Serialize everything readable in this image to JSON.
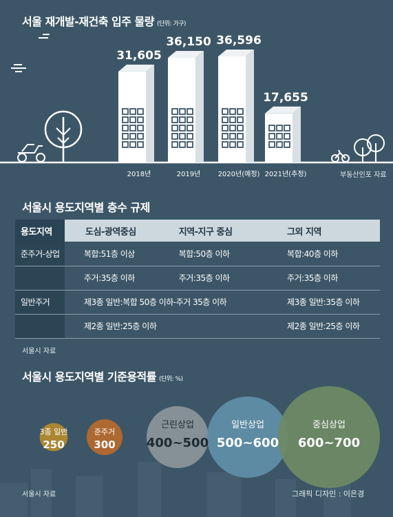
{
  "section1": {
    "title": "서울 재개발-재건축 입주 물량",
    "unit": "(단위: 가구)",
    "source": "부동산인포 자료"
  },
  "section2": {
    "title": "서울시 용도지역별 층수 규제",
    "headers": [
      "용도지역",
      "도심-광역중심",
      "지역-지구 중심",
      "그외 지역"
    ],
    "rows": [
      {
        "zone": "준주거-상업",
        "c1": "복합:51층 이상",
        "c2": "복합:50층 이하",
        "c3": "복합:40층 이하"
      },
      {
        "zone": "",
        "c1": "주거:35층 이하",
        "c2": "주거:35층 이하",
        "c3": "주거:35층 이하"
      },
      {
        "zone": "일반주거",
        "c12": "제3종 일반:복합 50층 이하-주거 35층 이하",
        "c3": "제3종 일반:35층 이하"
      },
      {
        "zone": "",
        "c12": "제2종 일반:25층 이하",
        "c3": "제2종 일반:25층 이하"
      }
    ],
    "source": "서울시 자료"
  },
  "section3": {
    "title": "서울시 용도지역별 기준용적률",
    "unit": "(단위: %)",
    "source": "서울시 자료"
  },
  "credit": "그래픽 디자인 : 이은경",
  "colors": {
    "background": "#3c5667",
    "circle1": "#b58a2f",
    "circle2": "#b8692d",
    "circle3": "#8c959b",
    "circle4": "#5f8fa8",
    "circle5": "#6f8a64"
  },
  "chart_data": [
    {
      "type": "bar",
      "title": "서울 재개발-재건축 입주 물량",
      "ylabel": "",
      "xlabel": "",
      "categories": [
        "2018년",
        "2019년",
        "2020년(예정)",
        "2021년(추정)"
      ],
      "values": [
        31605,
        36150,
        36596,
        17655
      ],
      "data_labels": [
        "31,605",
        "36,150",
        "36,596",
        "17,655"
      ],
      "ylim": [
        0,
        40000
      ]
    },
    {
      "type": "bubble",
      "title": "서울시 용도지역별 기준용적률",
      "categories": [
        "3종 일반",
        "준주거",
        "근린상업",
        "일반상업",
        "중심상업"
      ],
      "values": [
        "250",
        "300",
        "400~500",
        "500~600",
        "600~700"
      ],
      "magnitudes": [
        250,
        300,
        450,
        550,
        650
      ]
    }
  ]
}
